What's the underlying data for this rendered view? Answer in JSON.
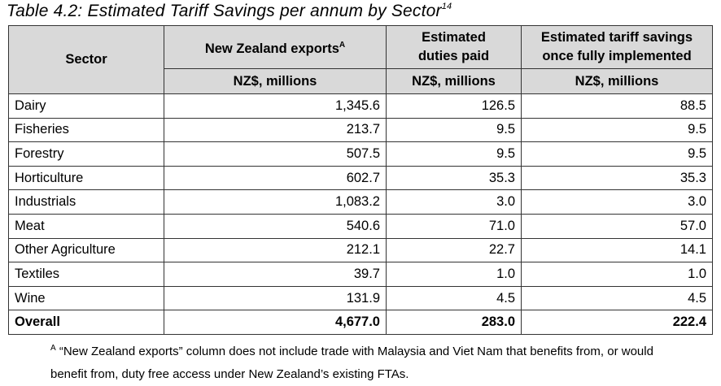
{
  "title": "Table 4.2: Estimated Tariff Savings per annum by Sector",
  "title_footnote_ref": "14",
  "headers": {
    "sector": "Sector",
    "exports": "New Zealand exports",
    "exports_note_ref": "A",
    "duties_line1": "Estimated",
    "duties_line2": "duties paid",
    "savings_line1": "Estimated tariff savings",
    "savings_line2": "once fully implemented",
    "unit_exports": "NZ$, millions",
    "unit_duties": "NZ$, millions",
    "unit_savings": "NZ$, millions"
  },
  "rows": [
    {
      "sector": "Dairy",
      "exports": "1,345.6",
      "duties": "126.5",
      "savings": "88.5"
    },
    {
      "sector": "Fisheries",
      "exports": "213.7",
      "duties": "9.5",
      "savings": "9.5"
    },
    {
      "sector": "Forestry",
      "exports": "507.5",
      "duties": "9.5",
      "savings": "9.5"
    },
    {
      "sector": "Horticulture",
      "exports": "602.7",
      "duties": "35.3",
      "savings": "35.3"
    },
    {
      "sector": "Industrials",
      "exports": "1,083.2",
      "duties": "3.0",
      "savings": "3.0"
    },
    {
      "sector": "Meat",
      "exports": "540.6",
      "duties": "71.0",
      "savings": "57.0"
    },
    {
      "sector": "Other Agriculture",
      "exports": "212.1",
      "duties": "22.7",
      "savings": "14.1"
    },
    {
      "sector": "Textiles",
      "exports": "39.7",
      "duties": "1.0",
      "savings": "1.0"
    },
    {
      "sector": "Wine",
      "exports": "131.9",
      "duties": "4.5",
      "savings": "4.5"
    }
  ],
  "total": {
    "sector": "Overall",
    "exports": "4,677.0",
    "duties": "283.0",
    "savings": "222.4"
  },
  "footnote": {
    "ref": "A",
    "line1": "“New Zealand exports” column does not include trade with Malaysia and Viet Nam that benefits from, or would",
    "line2": "benefit from, duty free access under New Zealand’s existing FTAs."
  }
}
